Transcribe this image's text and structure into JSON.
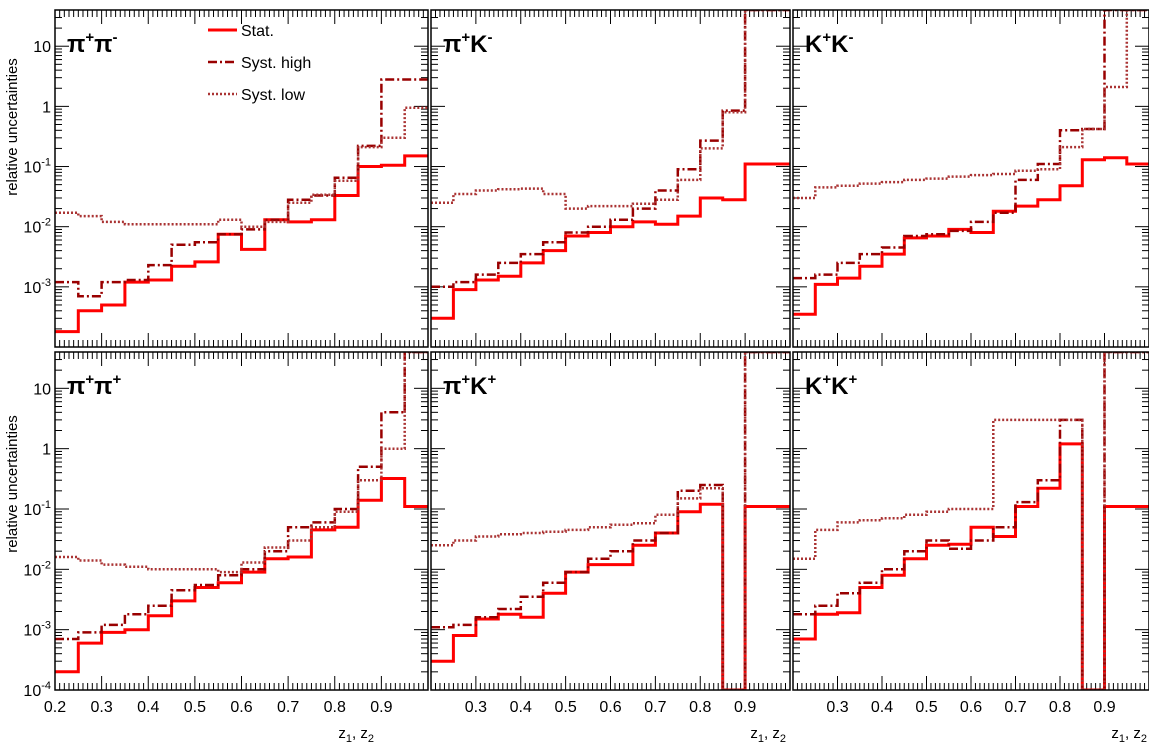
{
  "colors": {
    "stat": "#ff0000",
    "syst_high": "#990000",
    "syst_low": "#aa3333"
  },
  "chart_data": {
    "type": "line",
    "grid": false,
    "ylabel": "relative uncertainties",
    "xlabel_main": "z",
    "xlabel_sub1": "1",
    "xlabel_sep": ", z",
    "xlabel_sub2": "2",
    "yscale": "log",
    "xlim": [
      0.2,
      1.0
    ],
    "ylim_top": [
      0.0001,
      40
    ],
    "ylim_bottom": [
      0.0001,
      40
    ],
    "xticks_first": [
      "0.2",
      "0.3",
      "0.4",
      "0.5",
      "0.6",
      "0.7",
      "0.8",
      "0.9"
    ],
    "xticks_other": [
      "0.3",
      "0.4",
      "0.5",
      "0.6",
      "0.7",
      "0.8",
      "0.9"
    ],
    "yticks_top": [
      {
        "v": 0.001,
        "b": "10",
        "e": "-3"
      },
      {
        "v": 0.01,
        "b": "10",
        "e": "-2"
      },
      {
        "v": 0.1,
        "b": "10",
        "e": "-1"
      },
      {
        "v": 1,
        "b": "1",
        "e": ""
      },
      {
        "v": 10,
        "b": "10",
        "e": ""
      }
    ],
    "yticks_bottom": [
      {
        "v": 0.0001,
        "b": "10",
        "e": "-4"
      },
      {
        "v": 0.001,
        "b": "10",
        "e": "-3"
      },
      {
        "v": 0.01,
        "b": "10",
        "e": "-2"
      },
      {
        "v": 0.1,
        "b": "10",
        "e": "-1"
      },
      {
        "v": 1,
        "b": "1",
        "e": ""
      },
      {
        "v": 10,
        "b": "10",
        "e": ""
      }
    ],
    "legend": {
      "position": "top-left",
      "entries": [
        "Stat.",
        "Syst. high",
        "Syst. low"
      ]
    },
    "bin_edges": [
      0.2,
      0.25,
      0.3,
      0.35,
      0.4,
      0.45,
      0.5,
      0.55,
      0.6,
      0.65,
      0.7,
      0.75,
      0.8,
      0.85,
      0.9,
      0.95,
      1.0
    ],
    "panels": [
      {
        "label_base": [
          "π",
          "π"
        ],
        "label_sup": [
          "+",
          "-"
        ],
        "series": [
          {
            "name": "Stat.",
            "values": [
              0.00018,
              0.0004,
              0.0005,
              0.0012,
              0.0013,
              0.0022,
              0.0026,
              0.0075,
              0.0042,
              0.013,
              0.012,
              0.013,
              0.033,
              0.1,
              0.105,
              0.15
            ]
          },
          {
            "name": "Syst. high",
            "values": [
              0.0012,
              0.0007,
              0.0012,
              0.0013,
              0.0023,
              0.005,
              0.0055,
              0.0075,
              0.009,
              0.013,
              0.028,
              0.033,
              0.065,
              0.22,
              2.8,
              2.8
            ]
          },
          {
            "name": "Syst. low",
            "values": [
              0.017,
              0.015,
              0.012,
              0.011,
              0.011,
              0.011,
              0.011,
              0.013,
              0.01,
              0.012,
              0.025,
              0.034,
              0.058,
              0.21,
              0.3,
              0.95
            ]
          }
        ]
      },
      {
        "label_base": [
          "π",
          "K"
        ],
        "label_sup": [
          "+",
          "-"
        ],
        "series": [
          {
            "name": "Stat.",
            "values": [
              0.0003,
              0.0009,
              0.0013,
              0.0015,
              0.0025,
              0.004,
              0.007,
              0.008,
              0.01,
              0.012,
              0.011,
              0.015,
              0.03,
              0.028,
              0.11,
              0.11
            ]
          },
          {
            "name": "Syst. high",
            "values": [
              0.001,
              0.0012,
              0.0016,
              0.0025,
              0.0035,
              0.0055,
              0.008,
              0.01,
              0.013,
              0.02,
              0.04,
              0.09,
              0.27,
              0.85,
              40,
              40
            ]
          },
          {
            "name": "Syst. low",
            "values": [
              0.025,
              0.035,
              0.04,
              0.042,
              0.043,
              0.035,
              0.02,
              0.022,
              0.022,
              0.024,
              0.028,
              0.06,
              0.2,
              0.8,
              40,
              40
            ]
          }
        ]
      },
      {
        "label_base": [
          "K",
          "K"
        ],
        "label_sup": [
          "+",
          "-"
        ],
        "series": [
          {
            "name": "Stat.",
            "values": [
              0.00035,
              0.0011,
              0.0014,
              0.0022,
              0.0035,
              0.0065,
              0.007,
              0.009,
              0.008,
              0.018,
              0.022,
              0.028,
              0.048,
              0.13,
              0.14,
              0.11
            ]
          },
          {
            "name": "Syst. high",
            "values": [
              0.0014,
              0.0016,
              0.0025,
              0.0035,
              0.0045,
              0.007,
              0.0075,
              0.0085,
              0.012,
              0.017,
              0.06,
              0.11,
              0.4,
              0.42,
              40,
              40
            ]
          },
          {
            "name": "Syst. low",
            "values": [
              0.03,
              0.045,
              0.048,
              0.052,
              0.055,
              0.06,
              0.063,
              0.068,
              0.072,
              0.075,
              0.085,
              0.09,
              0.21,
              0.42,
              2.1,
              40
            ]
          }
        ]
      },
      {
        "label_base": [
          "π",
          "π"
        ],
        "label_sup": [
          "+",
          "+"
        ],
        "series": [
          {
            "name": "Stat.",
            "values": [
              0.0002,
              0.0006,
              0.0009,
              0.001,
              0.0017,
              0.003,
              0.005,
              0.006,
              0.009,
              0.015,
              0.016,
              0.045,
              0.05,
              0.14,
              0.32,
              0.11
            ]
          },
          {
            "name": "Syst. high",
            "values": [
              0.0007,
              0.0009,
              0.0012,
              0.0018,
              0.0025,
              0.0045,
              0.0055,
              0.008,
              0.01,
              0.02,
              0.05,
              0.06,
              0.1,
              0.5,
              4,
              40
            ]
          },
          {
            "name": "Syst. low",
            "values": [
              0.016,
              0.014,
              0.012,
              0.011,
              0.01,
              0.01,
              0.01,
              0.009,
              0.013,
              0.023,
              0.03,
              0.05,
              0.09,
              0.3,
              1,
              40
            ]
          }
        ]
      },
      {
        "label_base": [
          "π",
          "K"
        ],
        "label_sup": [
          "+",
          "+"
        ],
        "series": [
          {
            "name": "Stat.",
            "values": [
              0.0003,
              0.0008,
              0.0015,
              0.0018,
              0.0016,
              0.004,
              0.009,
              0.012,
              0.012,
              0.025,
              0.04,
              0.09,
              0.12,
              0.0001,
              0.11,
              0.11
            ]
          },
          {
            "name": "Syst. high",
            "values": [
              0.0011,
              0.0012,
              0.0016,
              0.0022,
              0.0035,
              0.006,
              0.009,
              0.015,
              0.02,
              0.03,
              0.04,
              0.2,
              0.25,
              0.0001,
              40,
              40
            ]
          },
          {
            "name": "Syst. low",
            "values": [
              0.025,
              0.03,
              0.035,
              0.038,
              0.04,
              0.042,
              0.045,
              0.05,
              0.055,
              0.058,
              0.08,
              0.15,
              0.22,
              0.0001,
              40,
              40
            ]
          }
        ]
      },
      {
        "label_base": [
          "K",
          "K"
        ],
        "label_sup": [
          "+",
          "+"
        ],
        "series": [
          {
            "name": "Stat.",
            "values": [
              0.0007,
              0.0018,
              0.0019,
              0.005,
              0.008,
              0.015,
              0.025,
              0.026,
              0.05,
              0.035,
              0.11,
              0.22,
              1.2,
              0.0001,
              0.11,
              0.11
            ]
          },
          {
            "name": "Syst. high",
            "values": [
              0.0018,
              0.0025,
              0.004,
              0.006,
              0.01,
              0.02,
              0.03,
              0.022,
              0.03,
              0.05,
              0.13,
              0.3,
              3,
              0.0001,
              40,
              40
            ]
          },
          {
            "name": "Syst. low",
            "values": [
              0.015,
              0.045,
              0.06,
              0.065,
              0.07,
              0.08,
              0.09,
              0.1,
              0.1,
              3,
              3,
              3,
              3,
              0.0001,
              40,
              40
            ]
          }
        ]
      }
    ]
  }
}
